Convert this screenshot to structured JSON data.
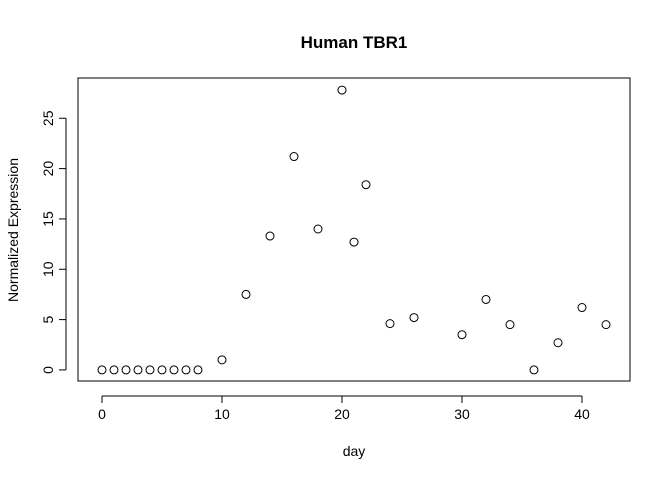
{
  "chart_data": {
    "type": "scatter",
    "title": "Human TBR1",
    "xlabel": "day",
    "ylabel": "Normalized Expression",
    "xlim": [
      -2,
      44
    ],
    "ylim": [
      -1.1,
      29
    ],
    "xticks": [
      0,
      10,
      20,
      30,
      40
    ],
    "yticks": [
      0,
      5,
      10,
      15,
      20,
      25
    ],
    "grid": false,
    "marker": "open-circle",
    "series": [
      {
        "points": [
          [
            0,
            0
          ],
          [
            1,
            0
          ],
          [
            2,
            0
          ],
          [
            3,
            0
          ],
          [
            4,
            0
          ],
          [
            5,
            0
          ],
          [
            6,
            0
          ],
          [
            7,
            0
          ],
          [
            8,
            0
          ],
          [
            10,
            1.0
          ],
          [
            12,
            7.5
          ],
          [
            14,
            13.3
          ],
          [
            16,
            21.2
          ],
          [
            18,
            14.0
          ],
          [
            20,
            27.8
          ],
          [
            21,
            12.7
          ],
          [
            22,
            18.4
          ],
          [
            24,
            4.6
          ],
          [
            26,
            5.2
          ],
          [
            30,
            3.5
          ],
          [
            32,
            7.0
          ],
          [
            34,
            4.5
          ],
          [
            36,
            0.0
          ],
          [
            38,
            2.7
          ],
          [
            40,
            6.2
          ],
          [
            42,
            4.5
          ]
        ]
      }
    ]
  }
}
